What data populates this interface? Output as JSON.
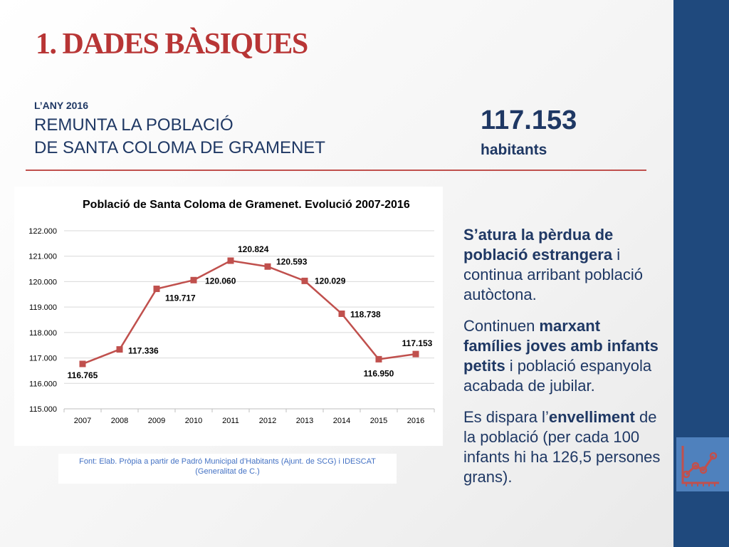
{
  "slide": {
    "title": "1. DADES BÀSIQUES",
    "kicker": "L’ANY 2016",
    "headline_line1": "REMUNTA LA POBLACIÓ",
    "headline_line2": "DE SANTA COLOMA DE GRAMENET",
    "big_number": "117.153",
    "big_unit": "habitants"
  },
  "source": {
    "line1": "Font: Elab. Pròpia a partir de Padró Municipal d’Habitants (Ajunt. de SCG) i IDESCAT",
    "line2": "(Generalitat de C.)"
  },
  "bullets": {
    "b1_pre": "",
    "b1_bold1": "S’atura la pèrdua de població estrangera",
    "b1_post": " i continua arribant població autòctona.",
    "b2_pre": "Continuen ",
    "b2_bold": "marxant famílies joves amb infants petits",
    "b2_post": " i població espanyola acabada de jubilar.",
    "b3_pre": "Es dispara l’",
    "b3_bold": "envelliment",
    "b3_post": " de la població (per cada 100 infants hi ha 126,5 persones grans)."
  },
  "icons": {
    "sidebar_icon": "line-chart-icon"
  },
  "colors": {
    "accent": "#c0504d",
    "title_red": "#b83535",
    "navy": "#1f3864",
    "sidebar": "#1f497d",
    "icon_box": "#4f81bd"
  },
  "chart_data": {
    "type": "line",
    "title": "Població de Santa Coloma de Gramenet. Evolució 2007-2016",
    "categories": [
      "2007",
      "2008",
      "2009",
      "2010",
      "2011",
      "2012",
      "2013",
      "2014",
      "2015",
      "2016"
    ],
    "series": [
      {
        "values": [
          116765,
          117336,
          119717,
          120060,
          120824,
          120593,
          120029,
          118738,
          116950,
          117153
        ]
      }
    ],
    "data_labels": [
      "116.765",
      "117.336",
      "119.717",
      "120.060",
      "120.824",
      "120.593",
      "120.029",
      "118.738",
      "116.950",
      "117.153"
    ],
    "y_ticks": [
      115000,
      116000,
      117000,
      118000,
      119000,
      120000,
      121000,
      122000
    ],
    "y_tick_labels": [
      "115.000",
      "116.000",
      "117.000",
      "118.000",
      "119.000",
      "120.000",
      "121.000",
      "122.000"
    ],
    "ylim": [
      115000,
      122000
    ],
    "grid": true,
    "legend": "none",
    "series_color": "#c0504d"
  }
}
